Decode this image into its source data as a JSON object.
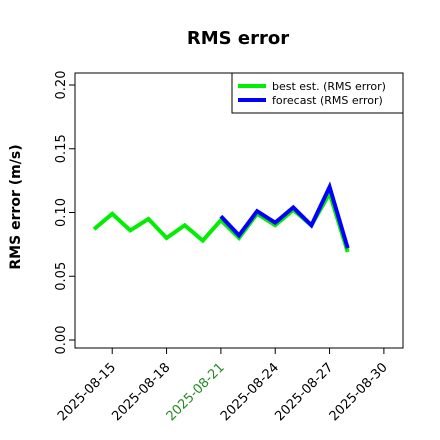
{
  "chart_data": {
    "type": "line",
    "title": "RMS error",
    "xlabel": "",
    "ylabel": "RMS error (m/s)",
    "ylim": [
      0,
      0.21
    ],
    "yticks": [
      0.0,
      0.05,
      0.1,
      0.15,
      0.2
    ],
    "ytick_labels": [
      "0.00",
      "0.05",
      "0.10",
      "0.15",
      "0.20"
    ],
    "xlim": [
      "2025-08-13",
      "2025-08-31"
    ],
    "xticks": [
      "2025-08-15",
      "2025-08-18",
      "2025-08-21",
      "2025-08-24",
      "2025-08-27",
      "2025-08-30"
    ],
    "xtick_labels": [
      {
        "text": "2025-08-15",
        "color": "#000000"
      },
      {
        "text": "2025-08-18",
        "color": "#000000"
      },
      {
        "text": "2025-08-21",
        "color": "#228b22"
      },
      {
        "text": "2025-08-24",
        "color": "#000000"
      },
      {
        "text": "2025-08-27",
        "color": "#000000"
      },
      {
        "text": "2025-08-30",
        "color": "#000000"
      }
    ],
    "grid": false,
    "legend_position": "top-right",
    "series": [
      {
        "name": "best est. (RMS error)",
        "color": "#00ee00",
        "points": [
          {
            "x": "2025-08-14",
            "y": 0.087
          },
          {
            "x": "2025-08-15",
            "y": 0.099
          },
          {
            "x": "2025-08-16",
            "y": 0.086
          },
          {
            "x": "2025-08-17",
            "y": 0.095
          },
          {
            "x": "2025-08-18",
            "y": 0.08
          },
          {
            "x": "2025-08-19",
            "y": 0.09
          },
          {
            "x": "2025-08-20",
            "y": 0.078
          },
          {
            "x": "2025-08-21",
            "y": 0.094
          },
          {
            "x": "2025-08-22",
            "y": 0.08
          },
          {
            "x": "2025-08-23",
            "y": 0.099
          },
          {
            "x": "2025-08-24",
            "y": 0.09
          },
          {
            "x": "2025-08-25",
            "y": 0.102
          },
          {
            "x": "2025-08-26",
            "y": 0.09
          },
          {
            "x": "2025-08-27",
            "y": 0.115
          },
          {
            "x": "2025-08-28",
            "y": 0.069
          }
        ]
      },
      {
        "name": "forecast (RMS error)",
        "color": "#0000ff",
        "points": [
          {
            "x": "2025-08-21",
            "y": 0.097
          },
          {
            "x": "2025-08-22",
            "y": 0.082
          },
          {
            "x": "2025-08-23",
            "y": 0.101
          },
          {
            "x": "2025-08-24",
            "y": 0.092
          },
          {
            "x": "2025-08-25",
            "y": 0.104
          },
          {
            "x": "2025-08-26",
            "y": 0.09
          },
          {
            "x": "2025-08-27",
            "y": 0.12
          },
          {
            "x": "2025-08-28",
            "y": 0.072
          }
        ]
      }
    ]
  }
}
